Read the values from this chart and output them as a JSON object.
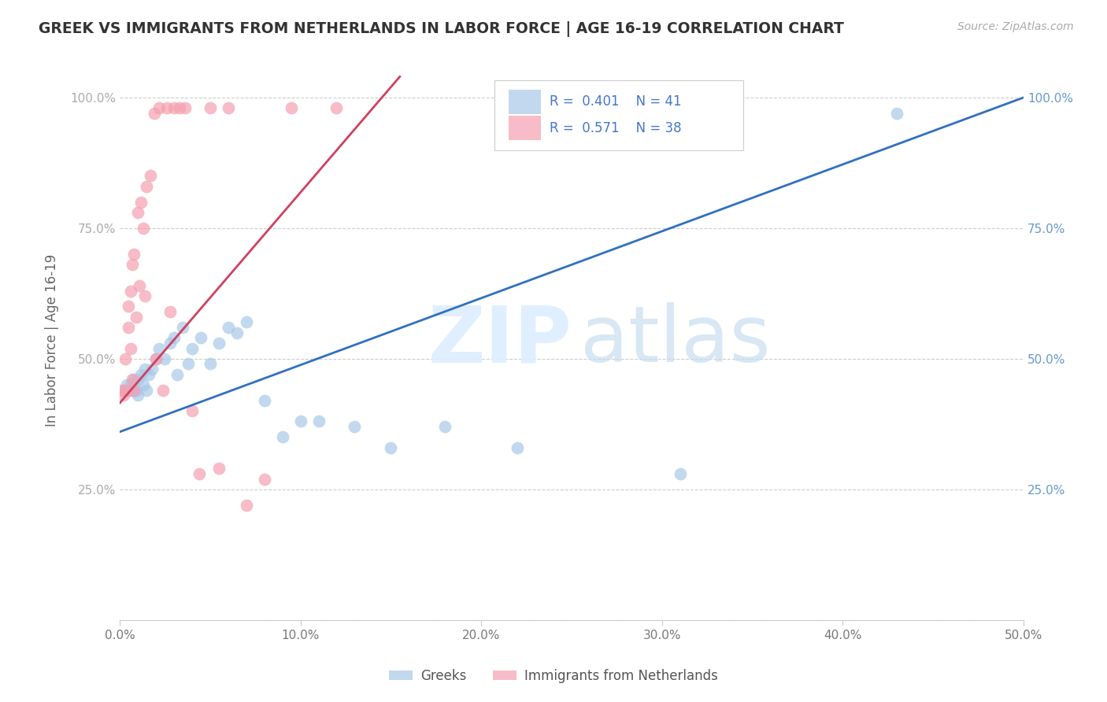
{
  "title": "GREEK VS IMMIGRANTS FROM NETHERLANDS IN LABOR FORCE | AGE 16-19 CORRELATION CHART",
  "source": "Source: ZipAtlas.com",
  "ylabel": "In Labor Force | Age 16-19",
  "xlim": [
    0.0,
    0.5
  ],
  "ylim": [
    0.0,
    1.07
  ],
  "xtick_vals": [
    0.0,
    0.1,
    0.2,
    0.3,
    0.4,
    0.5
  ],
  "xtick_labels": [
    "0.0%",
    "10.0%",
    "20.0%",
    "30.0%",
    "40.0%",
    "50.0%"
  ],
  "ytick_vals": [
    0.0,
    0.25,
    0.5,
    0.75,
    1.0
  ],
  "ytick_labels": [
    "",
    "25.0%",
    "50.0%",
    "75.0%",
    "100.0%"
  ],
  "legend_label1": "Greeks",
  "legend_label2": "Immigrants from Netherlands",
  "legend_r1": "R = 0.401",
  "legend_n1": "N = 41",
  "legend_r2": "R = 0.571",
  "legend_n2": "N = 38",
  "blue_color": "#a8c8e8",
  "pink_color": "#f4a0b0",
  "blue_line_color": "#3070c0",
  "pink_line_color": "#d04060",
  "watermark_zip": "ZIP",
  "watermark_atlas": "atlas",
  "blue_scatter_x": [
    0.002,
    0.003,
    0.004,
    0.005,
    0.006,
    0.007,
    0.008,
    0.009,
    0.01,
    0.01,
    0.012,
    0.013,
    0.014,
    0.015,
    0.016,
    0.018,
    0.02,
    0.022,
    0.025,
    0.028,
    0.03,
    0.032,
    0.035,
    0.038,
    0.04,
    0.045,
    0.05,
    0.055,
    0.06,
    0.065,
    0.07,
    0.08,
    0.09,
    0.1,
    0.11,
    0.13,
    0.15,
    0.18,
    0.22,
    0.31,
    0.43
  ],
  "blue_scatter_y": [
    0.44,
    0.44,
    0.45,
    0.44,
    0.45,
    0.44,
    0.46,
    0.44,
    0.46,
    0.43,
    0.47,
    0.45,
    0.48,
    0.44,
    0.47,
    0.48,
    0.5,
    0.52,
    0.5,
    0.53,
    0.54,
    0.47,
    0.56,
    0.49,
    0.52,
    0.54,
    0.49,
    0.53,
    0.56,
    0.55,
    0.57,
    0.42,
    0.35,
    0.38,
    0.38,
    0.37,
    0.33,
    0.37,
    0.33,
    0.28,
    0.97
  ],
  "pink_scatter_x": [
    0.001,
    0.002,
    0.003,
    0.004,
    0.005,
    0.005,
    0.006,
    0.006,
    0.007,
    0.007,
    0.008,
    0.008,
    0.009,
    0.01,
    0.011,
    0.012,
    0.013,
    0.014,
    0.015,
    0.017,
    0.019,
    0.02,
    0.022,
    0.024,
    0.026,
    0.028,
    0.03,
    0.033,
    0.036,
    0.04,
    0.044,
    0.05,
    0.055,
    0.06,
    0.07,
    0.08,
    0.095,
    0.12
  ],
  "pink_scatter_y": [
    0.44,
    0.43,
    0.5,
    0.44,
    0.56,
    0.6,
    0.52,
    0.63,
    0.46,
    0.68,
    0.44,
    0.7,
    0.58,
    0.78,
    0.64,
    0.8,
    0.75,
    0.62,
    0.83,
    0.85,
    0.97,
    0.5,
    0.98,
    0.44,
    0.98,
    0.59,
    0.98,
    0.98,
    0.98,
    0.4,
    0.28,
    0.98,
    0.29,
    0.98,
    0.22,
    0.27,
    0.98,
    0.98
  ],
  "blue_line_x0": 0.0,
  "blue_line_y0": 0.36,
  "blue_line_x1": 0.5,
  "blue_line_y1": 1.0,
  "pink_line_x0": 0.0,
  "pink_line_y0": 0.415,
  "pink_line_x1": 0.155,
  "pink_line_y1": 1.04
}
